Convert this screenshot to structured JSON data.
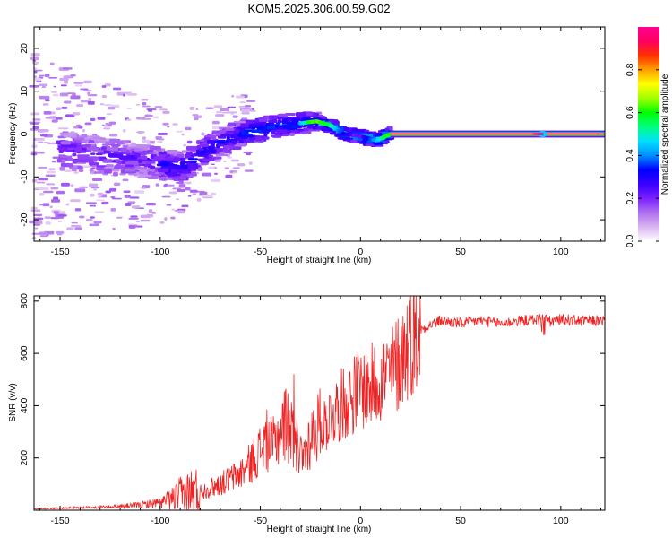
{
  "title": "KOM5.2025.306.00.59.G02",
  "chart_data": [
    {
      "type": "heatmap",
      "name": "spectrogram",
      "xlabel": "Height of straight line (km)",
      "ylabel": "Frequency (Hz)",
      "xlim": [
        -163,
        122
      ],
      "ylim": [
        -25,
        25
      ],
      "xticks": [
        -150,
        -100,
        -50,
        0,
        50,
        100
      ],
      "xtick_labels": [
        "-150",
        "-100",
        "-50",
        "0",
        "50",
        "100"
      ],
      "yticks": [
        -20,
        -10,
        0,
        10,
        20
      ],
      "ytick_labels": [
        "-20",
        "-10",
        "0",
        "10",
        "20"
      ],
      "ridge": [
        {
          "x": -160,
          "y": -3
        },
        {
          "x": -130,
          "y": -5
        },
        {
          "x": -110,
          "y": -6
        },
        {
          "x": -100,
          "y": -7
        },
        {
          "x": -90,
          "y": -8
        },
        {
          "x": -80,
          "y": -5
        },
        {
          "x": -70,
          "y": -2
        },
        {
          "x": -60,
          "y": 0
        },
        {
          "x": -50,
          "y": 1
        },
        {
          "x": -40,
          "y": 2
        },
        {
          "x": -30,
          "y": 2.5
        },
        {
          "x": -22,
          "y": 3
        },
        {
          "x": -15,
          "y": 2
        },
        {
          "x": -8,
          "y": 0
        },
        {
          "x": 0,
          "y": -0.5
        },
        {
          "x": 8,
          "y": -1.5
        },
        {
          "x": 15,
          "y": 0
        },
        {
          "x": 30,
          "y": 0
        },
        {
          "x": 122,
          "y": 0
        }
      ],
      "colorbar": {
        "label": "Normalized spectral amplitude",
        "range": [
          0,
          1
        ],
        "ticks": [
          0.0,
          0.2,
          0.4,
          0.6,
          0.8
        ],
        "tick_labels": [
          "0.0",
          "0.2",
          "0.4",
          "0.6",
          "0.8"
        ],
        "colormap": [
          "#ffffff",
          "#d8b4f0",
          "#b070f0",
          "#7a20ff",
          "#3a00ff",
          "#0000ff",
          "#0090ff",
          "#00e0ff",
          "#00ff80",
          "#00ff00",
          "#a0ff00",
          "#ffff00",
          "#ffa000",
          "#ff3000",
          "#ff0060",
          "#ff0090"
        ]
      }
    },
    {
      "type": "line",
      "name": "snr",
      "xlabel": "Height of straight line (km)",
      "ylabel": "SNR (v/v)",
      "xlim": [
        -163,
        122
      ],
      "ylim": [
        0,
        820
      ],
      "xticks": [
        -150,
        -100,
        -50,
        0,
        50,
        100
      ],
      "xtick_labels": [
        "-150",
        "-100",
        "-50",
        "0",
        "50",
        "100"
      ],
      "yticks": [
        200,
        400,
        600,
        800
      ],
      "ytick_labels": [
        "200",
        "400",
        "600",
        "800"
      ],
      "color": "#ee2222",
      "series": [
        {
          "name": "SNR",
          "x": [
            -163,
            -150,
            -140,
            -130,
            -120,
            -110,
            -100,
            -95,
            -90,
            -85,
            -80,
            -75,
            -70,
            -65,
            -60,
            -55,
            -50,
            -47,
            -44,
            -41,
            -38,
            -35,
            -32,
            -29,
            -26,
            -22,
            -18,
            -14,
            -10,
            -5,
            0,
            5,
            10,
            15,
            20,
            25,
            30,
            35,
            40,
            50,
            60,
            70,
            80,
            88,
            92,
            95,
            100,
            110,
            122
          ],
          "y": [
            5,
            8,
            10,
            12,
            15,
            20,
            28,
            40,
            55,
            65,
            70,
            85,
            100,
            120,
            140,
            180,
            230,
            270,
            240,
            290,
            330,
            300,
            250,
            190,
            260,
            320,
            330,
            370,
            400,
            430,
            470,
            470,
            510,
            520,
            580,
            660,
            690,
            710,
            725,
            715,
            725,
            715,
            725,
            730,
            735,
            720,
            730,
            725,
            725
          ]
        }
      ]
    }
  ]
}
